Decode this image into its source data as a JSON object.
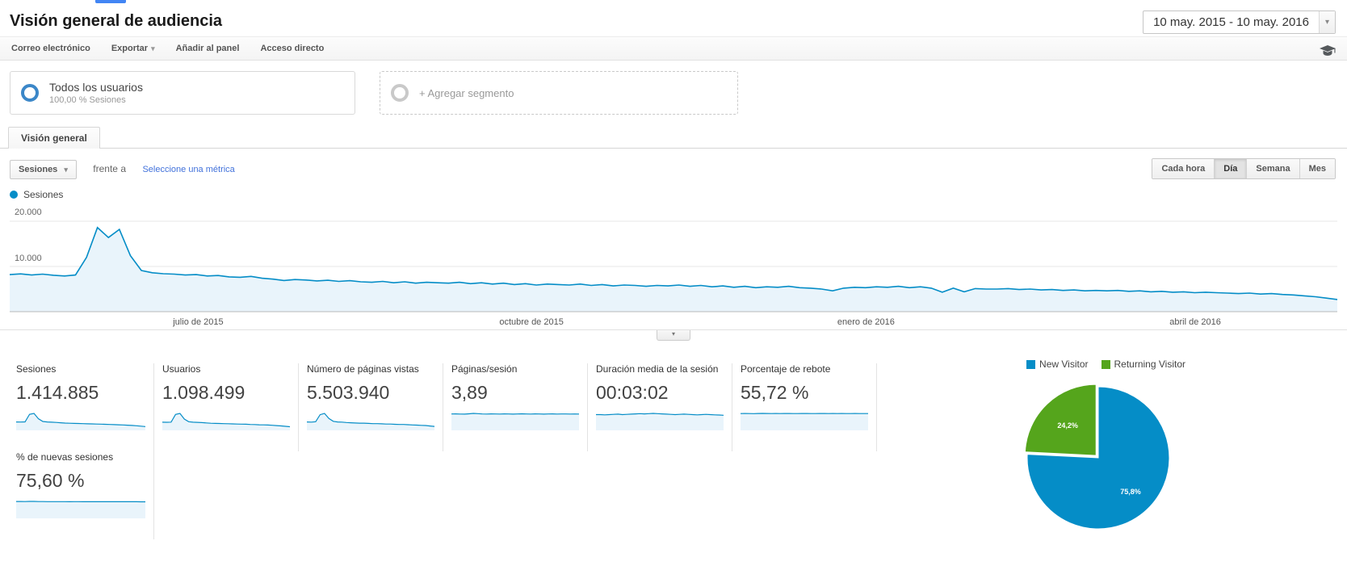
{
  "header": {
    "title": "Visión general de audiencia",
    "date_range": "10 may. 2015 - 10 may. 2016"
  },
  "toolbar": {
    "items": [
      "Correo electrónico",
      "Exportar",
      "Añadir al panel",
      "Acceso directo"
    ]
  },
  "segments": {
    "all_users_title": "Todos los usuarios",
    "all_users_subtitle": "100,00 % Sesiones",
    "add_segment_label": "+ Agregar segmento"
  },
  "tabs": {
    "overview": "Visión general"
  },
  "controls": {
    "metric_selector": "Sesiones",
    "vs_label": "frente a",
    "select_metric_link": "Seleccione una métrica",
    "granularity": [
      "Cada hora",
      "Día",
      "Semana",
      "Mes"
    ],
    "granularity_active": "Día"
  },
  "legend": {
    "label": "Sesiones"
  },
  "colors": {
    "line": "#058dc7",
    "area": "#e9f4fb",
    "link": "#4272db",
    "segment_ring": "#3b87c8",
    "pie_blue": "#058dc7",
    "pie_green": "#55a51c"
  },
  "chart_data": [
    {
      "type": "area",
      "title": "Sesiones por día",
      "x_range": [
        "10 may. 2015",
        "10 may. 2016"
      ],
      "ylim": [
        0,
        20000
      ],
      "y_ticks": [
        {
          "label": "20.000",
          "value": 20000
        },
        {
          "label": "10.000",
          "value": 10000
        }
      ],
      "x_ticks": [
        {
          "label": "julio de 2015",
          "pos": 14.2
        },
        {
          "label": "octubre de 2015",
          "pos": 39.3
        },
        {
          "label": "enero de 2016",
          "pos": 64.5
        },
        {
          "label": "abril de 2016",
          "pos": 89.3
        }
      ],
      "series": [
        {
          "name": "Sesiones",
          "values": [
            8200,
            8350,
            8100,
            8300,
            8050,
            7900,
            8100,
            12000,
            18600,
            16400,
            18200,
            12400,
            9100,
            8600,
            8400,
            8300,
            8100,
            8200,
            7900,
            8000,
            7700,
            7600,
            7800,
            7400,
            7200,
            6900,
            7100,
            7000,
            6800,
            6950,
            6700,
            6850,
            6600,
            6500,
            6700,
            6400,
            6600,
            6300,
            6500,
            6400,
            6300,
            6500,
            6200,
            6400,
            6100,
            6300,
            6000,
            6200,
            5900,
            6100,
            6000,
            5900,
            6100,
            5800,
            6000,
            5700,
            5900,
            5800,
            5600,
            5800,
            5700,
            5900,
            5600,
            5800,
            5500,
            5700,
            5400,
            5600,
            5300,
            5500,
            5400,
            5600,
            5300,
            5200,
            5000,
            4600,
            5200,
            5400,
            5300,
            5500,
            5400,
            5600,
            5300,
            5500,
            5200,
            4300,
            5200,
            4400,
            5100,
            5000,
            5000,
            5100,
            4900,
            5000,
            4800,
            4900,
            4700,
            4800,
            4600,
            4700,
            4600,
            4700,
            4500,
            4600,
            4400,
            4500,
            4300,
            4400,
            4200,
            4300,
            4200,
            4100,
            4000,
            4100,
            3900,
            4000,
            3800,
            3700,
            3500,
            3300,
            3000,
            2700
          ]
        }
      ]
    },
    {
      "type": "pie",
      "labels": [
        "New Visitor",
        "Returning Visitor"
      ],
      "values": [
        75.8,
        24.2
      ],
      "display_labels": [
        "75,8%",
        "24,2%"
      ],
      "colors": [
        "#058dc7",
        "#55a51c"
      ],
      "legend_position": "top"
    }
  ],
  "metrics": [
    {
      "label": "Sesiones",
      "value": "1.414.885",
      "trend": [
        8.2,
        8.1,
        8.3,
        17.5,
        18.6,
        12.0,
        8.8,
        8.2,
        7.9,
        7.6,
        7.2,
        6.9,
        6.7,
        6.5,
        6.4,
        6.2,
        6.0,
        5.9,
        5.7,
        5.6,
        5.4,
        5.2,
        5.0,
        4.8,
        4.6,
        4.3,
        4.0,
        3.6,
        3.1,
        2.6
      ]
    },
    {
      "label": "Usuarios",
      "value": "1.098.499",
      "trend": [
        6.4,
        6.3,
        6.5,
        14.0,
        15.0,
        9.5,
        6.9,
        6.4,
        6.2,
        6.0,
        5.7,
        5.4,
        5.2,
        5.1,
        5.0,
        4.9,
        4.7,
        4.6,
        4.5,
        4.4,
        4.2,
        4.1,
        3.9,
        3.8,
        3.6,
        3.4,
        3.1,
        2.8,
        2.4,
        2.0
      ]
    },
    {
      "label": "Número de páginas vistas",
      "value": "5.503.940",
      "trend": [
        32,
        31,
        33,
        66,
        72,
        48,
        35,
        32,
        31,
        29,
        28,
        27,
        26,
        26,
        25,
        24,
        24,
        23,
        22,
        22,
        21,
        20,
        20,
        19,
        18,
        17,
        16,
        15,
        13,
        11
      ]
    },
    {
      "label": "Páginas/sesión",
      "value": "3,89",
      "trend": [
        3.9,
        3.92,
        3.88,
        3.85,
        3.95,
        4.05,
        3.98,
        3.9,
        3.88,
        3.92,
        3.9,
        3.87,
        3.93,
        3.9,
        3.85,
        3.9,
        3.95,
        3.9,
        3.88,
        3.92,
        3.9,
        3.86,
        3.9,
        3.93,
        3.89,
        3.91,
        3.9,
        3.88,
        3.9,
        3.87
      ]
    },
    {
      "label": "Duración media de la sesión",
      "value": "00:03:02",
      "trend": [
        3.0,
        3.0,
        2.95,
        3.0,
        3.05,
        3.1,
        3.0,
        3.05,
        3.1,
        3.15,
        3.2,
        3.15,
        3.2,
        3.25,
        3.2,
        3.15,
        3.1,
        3.05,
        3.0,
        3.05,
        3.1,
        3.05,
        3.0,
        2.95,
        3.0,
        3.05,
        3.0,
        2.95,
        2.9,
        2.85
      ]
    },
    {
      "label": "Porcentaje de rebote",
      "value": "55,72 %",
      "trend": [
        55.5,
        55.8,
        55.6,
        55.2,
        55.9,
        56.1,
        55.7,
        55.6,
        55.8,
        55.5,
        55.7,
        55.9,
        55.6,
        55.4,
        55.7,
        55.8,
        55.5,
        55.6,
        55.9,
        55.7,
        55.5,
        55.8,
        55.6,
        55.7,
        55.5,
        55.6,
        55.8,
        55.5,
        55.4,
        55.6
      ]
    },
    {
      "label": "% de nuevas sesiones",
      "value": "75,60 %",
      "trend": [
        76.5,
        76.4,
        76.2,
        77.0,
        76.8,
        76.3,
        76.0,
        75.9,
        75.8,
        75.7,
        75.6,
        75.6,
        75.5,
        75.6,
        75.7,
        75.5,
        75.4,
        75.5,
        75.6,
        75.4,
        75.3,
        75.5,
        75.4,
        75.3,
        75.2,
        75.3,
        75.4,
        75.2,
        75.1,
        75.0
      ]
    }
  ]
}
